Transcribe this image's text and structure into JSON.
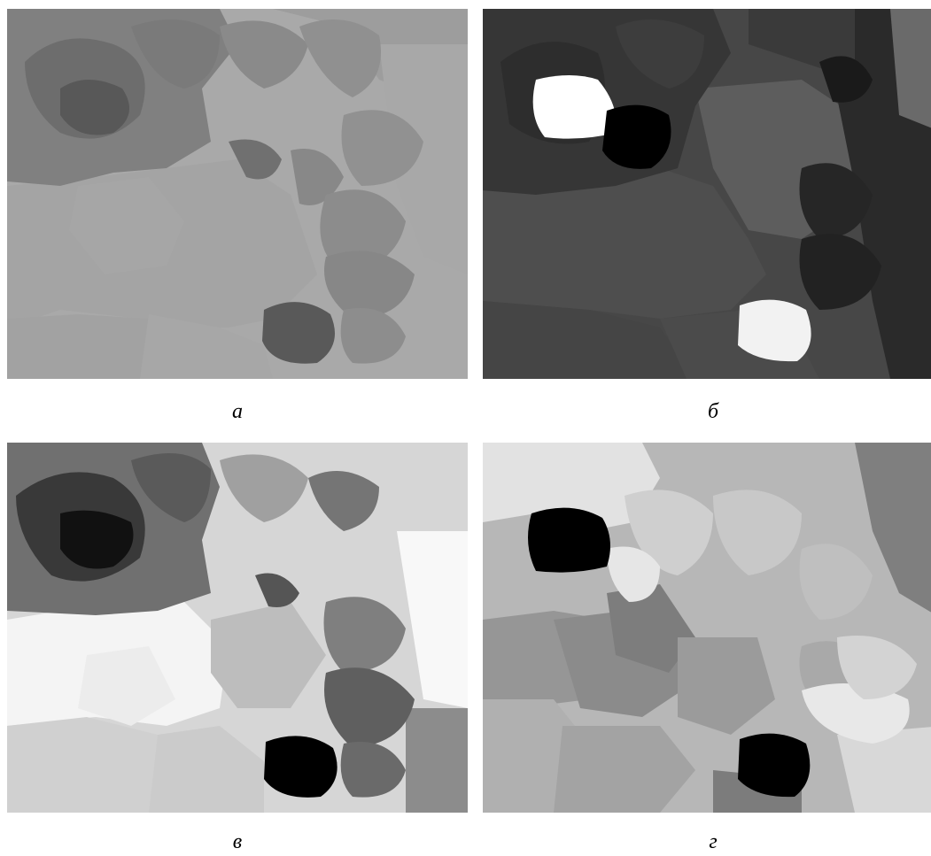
{
  "panels": [
    {
      "id": "a",
      "label": "а"
    },
    {
      "id": "b",
      "label": "б"
    },
    {
      "id": "c",
      "label": "в"
    },
    {
      "id": "d",
      "label": "г"
    }
  ]
}
